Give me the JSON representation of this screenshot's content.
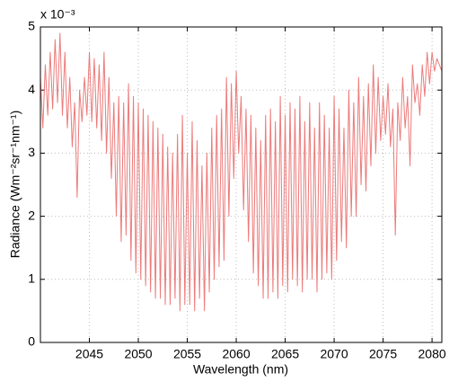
{
  "chart_data": {
    "type": "line",
    "xlabel": "Wavelength (nm)",
    "ylabel": "Radiance (Wm⁻²sr⁻¹nm⁻¹)",
    "y_multiplier": "x 10⁻³",
    "xlim": [
      2040,
      2081
    ],
    "xticks": [
      2045,
      2050,
      2055,
      2060,
      2065,
      2070,
      2075,
      2080
    ],
    "ylim": [
      0,
      5
    ],
    "yticks": [
      0,
      1,
      2,
      3,
      4,
      5
    ],
    "grid": true,
    "x": [
      2040,
      2040.25,
      2040.5,
      2040.75,
      2041,
      2041.25,
      2041.5,
      2041.75,
      2042,
      2042.25,
      2042.5,
      2042.75,
      2043,
      2043.25,
      2043.5,
      2043.75,
      2044,
      2044.25,
      2044.5,
      2044.75,
      2045,
      2045.25,
      2045.5,
      2045.75,
      2046,
      2046.25,
      2046.5,
      2046.75,
      2047,
      2047.25,
      2047.5,
      2047.75,
      2048,
      2048.25,
      2048.5,
      2048.75,
      2049,
      2049.25,
      2049.5,
      2049.75,
      2050,
      2050.25,
      2050.5,
      2050.75,
      2051,
      2051.25,
      2051.5,
      2051.75,
      2052,
      2052.25,
      2052.5,
      2052.75,
      2053,
      2053.25,
      2053.5,
      2053.75,
      2054,
      2054.25,
      2054.5,
      2054.75,
      2055,
      2055.25,
      2055.5,
      2055.75,
      2056,
      2056.25,
      2056.5,
      2056.75,
      2057,
      2057.25,
      2057.5,
      2057.75,
      2058,
      2058.25,
      2058.5,
      2058.75,
      2059,
      2059.25,
      2059.5,
      2059.75,
      2060,
      2060.25,
      2060.5,
      2060.75,
      2061,
      2061.25,
      2061.5,
      2061.75,
      2062,
      2062.25,
      2062.5,
      2062.75,
      2063,
      2063.25,
      2063.5,
      2063.75,
      2064,
      2064.25,
      2064.5,
      2064.75,
      2065,
      2065.25,
      2065.5,
      2065.75,
      2066,
      2066.25,
      2066.5,
      2066.75,
      2067,
      2067.25,
      2067.5,
      2067.75,
      2068,
      2068.25,
      2068.5,
      2068.75,
      2069,
      2069.25,
      2069.5,
      2069.75,
      2070,
      2070.25,
      2070.5,
      2070.75,
      2071,
      2071.25,
      2071.5,
      2071.75,
      2072,
      2072.25,
      2072.5,
      2072.75,
      2073,
      2073.25,
      2073.5,
      2073.75,
      2074,
      2074.25,
      2074.5,
      2074.75,
      2075,
      2075.25,
      2075.5,
      2075.75,
      2076,
      2076.25,
      2076.5,
      2076.75,
      2077,
      2077.25,
      2077.5,
      2077.75,
      2078,
      2078.25,
      2078.5,
      2078.75,
      2079,
      2079.25,
      2079.5,
      2079.75,
      2080,
      2080.25,
      2080.5,
      2080.75,
      2081
    ],
    "series": [
      {
        "color": "#ec7a7a",
        "values": [
          4.2,
          3.4,
          4.4,
          3.6,
          4.6,
          3.7,
          4.8,
          3.8,
          4.9,
          3.6,
          4.6,
          3.4,
          4.2,
          3.1,
          3.8,
          2.3,
          4.0,
          3.5,
          4.2,
          3.6,
          4.6,
          3.5,
          4.5,
          3.4,
          4.4,
          3.2,
          4.6,
          3.0,
          4.2,
          2.6,
          3.8,
          2.0,
          3.9,
          1.6,
          3.8,
          1.7,
          4.1,
          1.3,
          3.9,
          1.1,
          3.8,
          1.0,
          3.7,
          0.9,
          3.6,
          0.8,
          3.5,
          0.7,
          3.4,
          0.7,
          3.3,
          0.6,
          3.1,
          0.6,
          3.0,
          0.7,
          3.3,
          0.5,
          3.6,
          0.6,
          3.0,
          0.6,
          3.5,
          0.5,
          3.2,
          0.7,
          2.8,
          0.5,
          3.0,
          0.8,
          3.4,
          1.0,
          3.6,
          1.2,
          3.7,
          1.3,
          4.2,
          2.0,
          4.1,
          2.6,
          4.3,
          3.0,
          3.9,
          2.1,
          3.7,
          1.6,
          3.6,
          1.1,
          3.4,
          0.9,
          3.2,
          0.7,
          3.6,
          0.7,
          3.7,
          0.8,
          3.5,
          0.7,
          3.9,
          0.9,
          3.6,
          0.8,
          3.8,
          1.0,
          3.7,
          0.9,
          3.9,
          0.8,
          3.5,
          1.0,
          3.8,
          1.0,
          3.4,
          0.8,
          3.8,
          1.0,
          3.6,
          1.1,
          3.4,
          1.0,
          3.9,
          1.3,
          3.7,
          1.6,
          3.4,
          1.5,
          4.0,
          2.0,
          3.8,
          2.0,
          4.2,
          2.5,
          3.9,
          2.4,
          4.1,
          2.8,
          4.4,
          3.0,
          4.2,
          3.2,
          3.9,
          3.3,
          4.1,
          3.1,
          3.7,
          1.7,
          3.8,
          3.2,
          4.2,
          3.4,
          3.9,
          2.8,
          4.4,
          3.8,
          4.1,
          3.6,
          4.4,
          3.9,
          4.6,
          4.1,
          4.6,
          4.3,
          4.5,
          4.4,
          4.3
        ]
      }
    ]
  }
}
